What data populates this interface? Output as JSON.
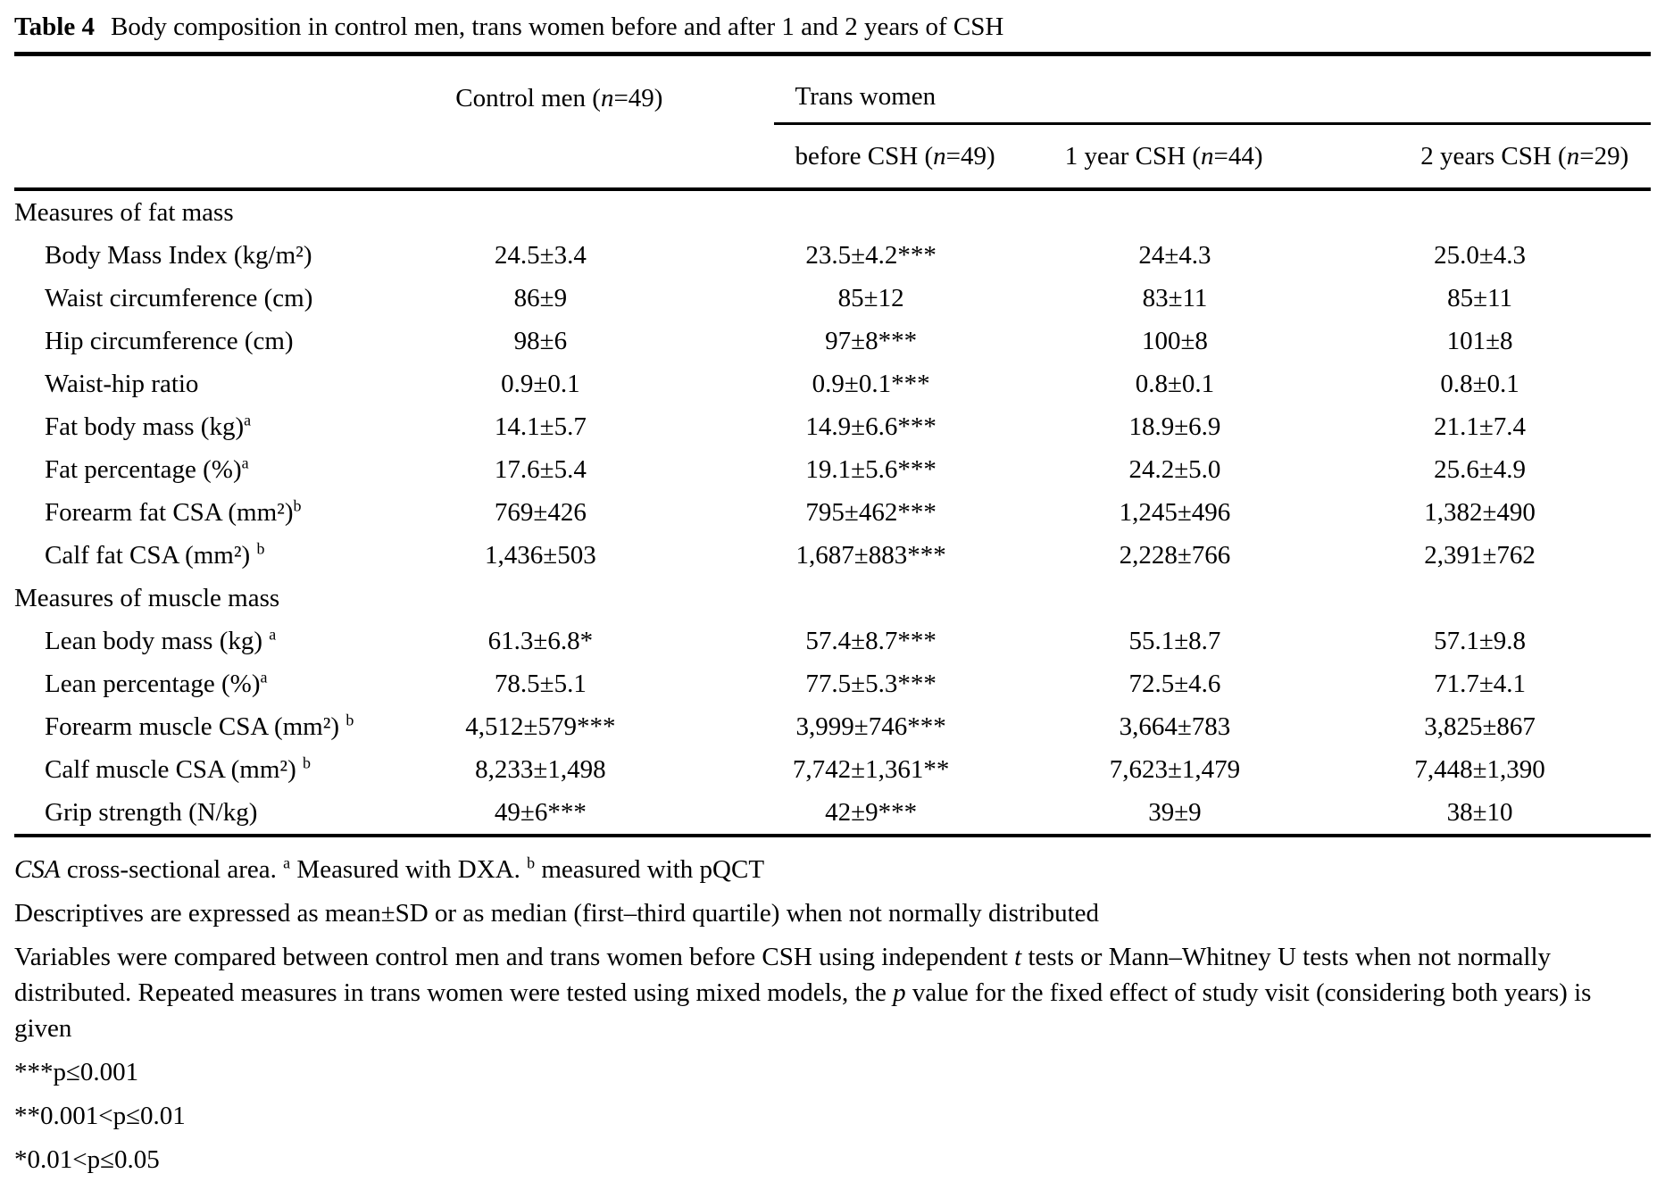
{
  "title": {
    "label": "Table 4",
    "text": "Body composition in control men, trans women before and after 1 and 2 years of CSH"
  },
  "header": {
    "control": {
      "pre": "Control men (",
      "n": "n",
      "post": "=49)"
    },
    "group": "Trans women",
    "subcols": [
      {
        "pre": "before CSH (",
        "n": "n",
        "post": "=49)"
      },
      {
        "pre": "1 year CSH (",
        "n": "n",
        "post": "=44)"
      },
      {
        "pre": "2 years CSH (",
        "n": "n",
        "post": "=29)"
      }
    ]
  },
  "rows": [
    {
      "type": "section",
      "label": "Measures of fat mass",
      "sup": "",
      "values": [
        "",
        "",
        "",
        ""
      ]
    },
    {
      "type": "data",
      "label": "Body Mass Index (kg/m²)",
      "sup": "",
      "values": [
        "24.5±3.4",
        "23.5±4.2***",
        "24±4.3",
        "25.0±4.3"
      ]
    },
    {
      "type": "data",
      "label": "Waist circumference (cm)",
      "sup": "",
      "values": [
        "86±9",
        "85±12",
        "83±11",
        "85±11"
      ]
    },
    {
      "type": "data",
      "label": "Hip circumference (cm)",
      "sup": "",
      "values": [
        "98±6",
        "97±8***",
        "100±8",
        "101±8"
      ]
    },
    {
      "type": "data",
      "label": "Waist-hip ratio",
      "sup": "",
      "values": [
        "0.9±0.1",
        "0.9±0.1***",
        "0.8±0.1",
        "0.8±0.1"
      ]
    },
    {
      "type": "data",
      "label": "Fat body mass (kg)",
      "sup": "a",
      "values": [
        "14.1±5.7",
        "14.9±6.6***",
        "18.9±6.9",
        "21.1±7.4"
      ]
    },
    {
      "type": "data",
      "label": "Fat percentage (%)",
      "sup": "a",
      "values": [
        "17.6±5.4",
        "19.1±5.6***",
        "24.2±5.0",
        "25.6±4.9"
      ]
    },
    {
      "type": "data",
      "label": "Forearm fat CSA (mm²)",
      "sup": "b",
      "values": [
        "769±426",
        "795±462***",
        "1,245±496",
        "1,382±490"
      ]
    },
    {
      "type": "data",
      "label": "Calf fat CSA (mm²) ",
      "sup": "b",
      "values": [
        "1,436±503",
        "1,687±883***",
        "2,228±766",
        "2,391±762"
      ]
    },
    {
      "type": "section",
      "label": "Measures of muscle mass",
      "sup": "",
      "values": [
        "",
        "",
        "",
        ""
      ]
    },
    {
      "type": "data",
      "label": "Lean body mass (kg) ",
      "sup": "a",
      "values": [
        "61.3±6.8*",
        "57.4±8.7***",
        "55.1±8.7",
        "57.1±9.8"
      ]
    },
    {
      "type": "data",
      "label": "Lean percentage (%)",
      "sup": "a",
      "values": [
        "78.5±5.1",
        "77.5±5.3***",
        "72.5±4.6",
        "71.7±4.1"
      ]
    },
    {
      "type": "data",
      "label": "Forearm muscle CSA (mm²) ",
      "sup": "b",
      "values": [
        "4,512±579***",
        "3,999±746***",
        "3,664±783",
        "3,825±867"
      ]
    },
    {
      "type": "data",
      "label": "Calf muscle CSA (mm²) ",
      "sup": "b",
      "values": [
        "8,233±1,498",
        "7,742±1,361**",
        "7,623±1,479",
        "7,448±1,390"
      ]
    },
    {
      "type": "data",
      "label": "Grip strength (N/kg)",
      "sup": "",
      "values": [
        "49±6***",
        "42±9***",
        "39±9",
        "38±10"
      ]
    }
  ],
  "footnotes": [
    [
      {
        "t": "CSA",
        "i": true
      },
      {
        "t": " cross-sectional area. "
      },
      {
        "t": "a",
        "sup": true
      },
      {
        "t": " Measured with DXA. "
      },
      {
        "t": "b",
        "sup": true
      },
      {
        "t": " measured with pQCT"
      }
    ],
    [
      {
        "t": "Descriptives are expressed as mean±SD or as median (first–third quartile) when not normally distributed"
      }
    ],
    [
      {
        "t": "Variables were compared between control men and trans women before CSH using independent "
      },
      {
        "t": "t",
        "i": true
      },
      {
        "t": " tests or Mann–Whitney U tests when not normally distributed. Repeated measures in trans women were tested using mixed models, the "
      },
      {
        "t": "p",
        "i": true
      },
      {
        "t": " value for the fixed effect of study visit (considering both years) is given"
      }
    ],
    [
      {
        "t": "***p≤0.001"
      }
    ],
    [
      {
        "t": "**0.001<p≤0.01"
      }
    ],
    [
      {
        "t": "*0.01<p≤0.05"
      }
    ]
  ]
}
